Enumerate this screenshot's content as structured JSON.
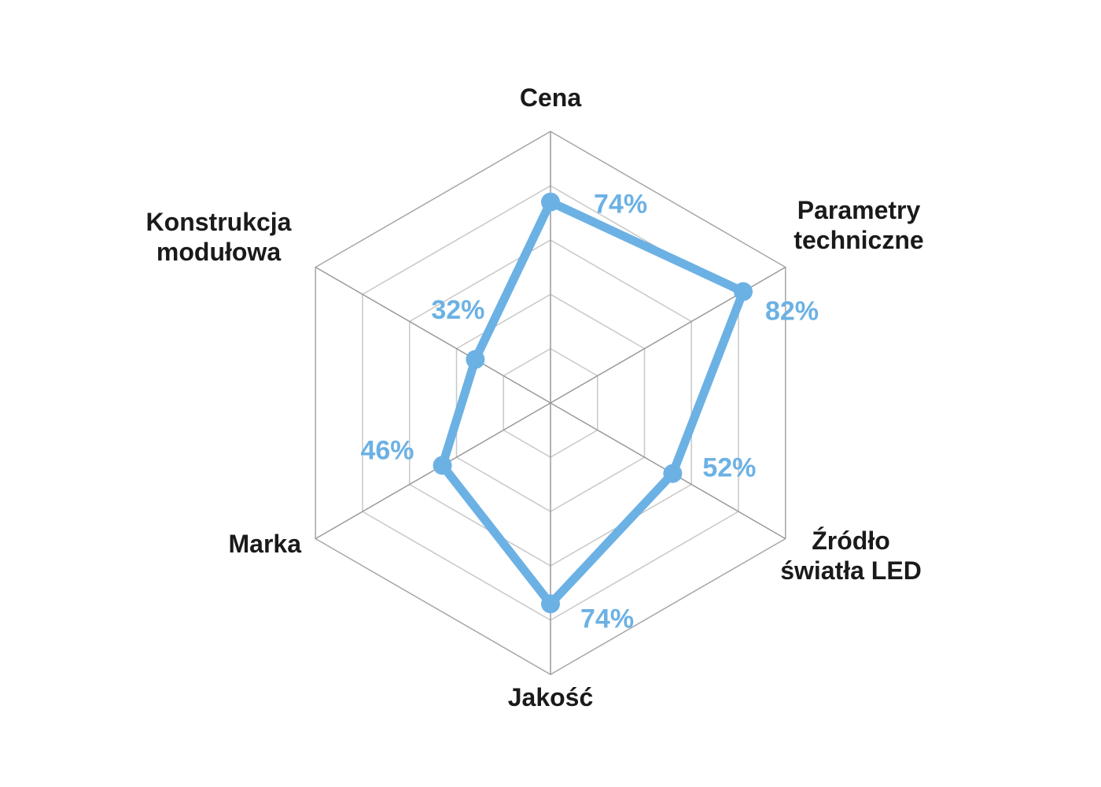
{
  "chart_data": {
    "type": "radar",
    "categories": [
      "Cena",
      "Parametry techniczne",
      "Źródło światła LED",
      "Jakość",
      "Marka",
      "Konstrukcja modułowa"
    ],
    "category_lines": [
      [
        "Cena"
      ],
      [
        "Parametry",
        "techniczne"
      ],
      [
        "Źródło",
        "światła LED"
      ],
      [
        "Jakość"
      ],
      [
        "Marka"
      ],
      [
        "Konstrukcja",
        "modułowa"
      ]
    ],
    "series": [
      {
        "values": [
          74,
          82,
          52,
          74,
          46,
          32
        ],
        "labels": [
          "74%",
          "82%",
          "52%",
          "74%",
          "46%",
          "32%"
        ],
        "color": "#6cb1e4"
      }
    ],
    "range": [
      0,
      100
    ],
    "grid_levels": 5,
    "grid_color": "#c8c8c8",
    "axis_color": "#9a9a9a",
    "legend": "none"
  }
}
